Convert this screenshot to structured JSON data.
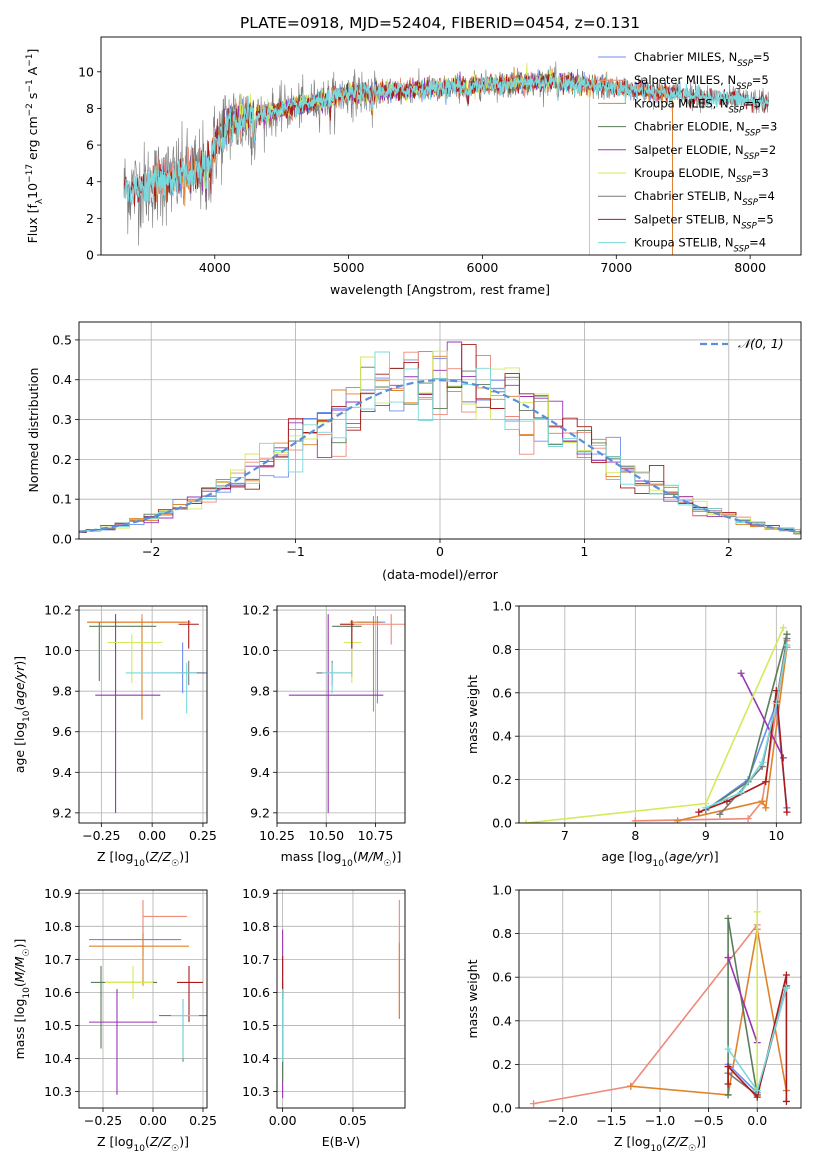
{
  "title": "PLATE=0918, MJD=52404, FIBERID=0454, z=0.131",
  "colors": {
    "Chabrier MILES": "#6c8ef0",
    "Salpeter MILES": "#ee8a7a",
    "Kroupa MILES": "#e0832b",
    "Chabrier ELODIE": "#5a7d5a",
    "Salpeter ELODIE": "#9a35b4",
    "Kroupa ELODIE": "#d4ea5a",
    "Chabrier STELIB": "#7a7a7a",
    "Salpeter STELIB": "#a81c1c",
    "Kroupa STELIB": "#78d8dc",
    "gaussian": "#5b8fd9"
  },
  "legend_spectrum": [
    {
      "series": "Chabrier MILES",
      "prefix": "Chabrier MILES, N",
      "sub": "SSP",
      "suffix": "=5"
    },
    {
      "series": "Salpeter MILES",
      "prefix": "Salpeter MILES, N",
      "sub": "SSP",
      "suffix": "=5"
    },
    {
      "series": "Kroupa MILES",
      "prefix": "Kroupa MILES, N",
      "sub": "SSP",
      "suffix": "=5"
    },
    {
      "series": "Chabrier ELODIE",
      "prefix": "Chabrier ELODIE, N",
      "sub": "SSP",
      "suffix": "=3"
    },
    {
      "series": "Salpeter ELODIE",
      "prefix": "Salpeter ELODIE, N",
      "sub": "SSP",
      "suffix": "=2"
    },
    {
      "series": "Kroupa ELODIE",
      "prefix": "Kroupa ELODIE, N",
      "sub": "SSP",
      "suffix": "=3"
    },
    {
      "series": "Chabrier STELIB",
      "prefix": "Chabrier STELIB, N",
      "sub": "SSP",
      "suffix": "=4"
    },
    {
      "series": "Salpeter STELIB",
      "prefix": "Salpeter STELIB, N",
      "sub": "SSP",
      "suffix": "=5"
    },
    {
      "series": "Kroupa STELIB",
      "prefix": "Kroupa STELIB, N",
      "sub": "SSP",
      "suffix": "=4"
    }
  ],
  "legend_gauss": "𝒩(0, 1)",
  "chart_data": [
    {
      "id": "spectrum",
      "type": "line",
      "xlabel": "wavelength [Angstrom, rest frame]",
      "ylabel": "Flux [f_λ 10^-17 erg cm^-2 s^-1 A^-1]",
      "xlim": [
        3150,
        8380
      ],
      "ylim": [
        0,
        11.9
      ],
      "xticks": [
        4000,
        5000,
        6000,
        7000,
        8000
      ],
      "yticks": [
        0,
        2,
        4,
        6,
        8,
        10
      ],
      "wave_range": [
        3320,
        8140
      ]
    },
    {
      "id": "residuals",
      "type": "histogram",
      "xlabel": "(data-model)/error",
      "ylabel": "Normed distribution",
      "xlim": [
        -2.5,
        2.5
      ],
      "ylim": [
        0,
        0.545
      ],
      "xticks": [
        -2,
        -1,
        0,
        1,
        2
      ],
      "yticks": [
        0.0,
        0.1,
        0.2,
        0.3,
        0.4,
        0.5
      ],
      "grid": true,
      "bin_width": 0.1
    },
    {
      "id": "age_vs_Z",
      "type": "errorbar",
      "xlabel": "Z [log10(Z/Z☉)]",
      "ylabel": "age [log10(age/yr)]",
      "xlim": [
        -0.36,
        0.27
      ],
      "ylim": [
        9.15,
        10.22
      ],
      "xticks": [
        -0.25,
        0.0,
        0.25
      ],
      "yticks": [
        9.2,
        9.4,
        9.6,
        9.8,
        10.0,
        10.2
      ],
      "points": [
        {
          "s": "Chabrier MILES",
          "x": 0.15,
          "y": 9.89,
          "xerr": [
            0.15,
            0.2
          ],
          "yerr": [
            0.1,
            0.15
          ]
        },
        {
          "s": "Salpeter MILES",
          "x": -0.05,
          "y": 10.14,
          "xerr": [
            0.27,
            0.24
          ],
          "yerr": [
            0.08,
            0.04
          ]
        },
        {
          "s": "Kroupa MILES",
          "x": -0.05,
          "y": 10.14,
          "xerr": [
            0.27,
            0.22
          ],
          "yerr": [
            0.48,
            0.02
          ]
        },
        {
          "s": "Chabrier ELODIE",
          "x": -0.26,
          "y": 10.12,
          "xerr": [
            0.05,
            0.28
          ],
          "yerr": [
            0.27,
            0.02
          ]
        },
        {
          "s": "Salpeter ELODIE",
          "x": -0.18,
          "y": 9.78,
          "xerr": [
            0.1,
            0.22
          ],
          "yerr": [
            0.58,
            0.4
          ]
        },
        {
          "s": "Kroupa ELODIE",
          "x": -0.1,
          "y": 10.04,
          "xerr": [
            0.12,
            0.15
          ],
          "yerr": [
            0.2,
            0.04
          ]
        },
        {
          "s": "Chabrier STELIB",
          "x": 0.18,
          "y": 9.89,
          "xerr": [
            0.06,
            0.08
          ],
          "yerr": [
            0.06,
            0.06
          ]
        },
        {
          "s": "Salpeter STELIB",
          "x": 0.18,
          "y": 10.13,
          "xerr": [
            0.05,
            0.05
          ],
          "yerr": [
            0.12,
            0.02
          ]
        },
        {
          "s": "Kroupa STELIB",
          "x": 0.17,
          "y": 9.89,
          "xerr": [
            0.3,
            0.05
          ],
          "yerr": [
            0.2,
            0.05
          ]
        }
      ]
    },
    {
      "id": "age_vs_mass",
      "type": "errorbar",
      "xlabel": "mass [log10(M/M☉)]",
      "ylabel": "",
      "xlim": [
        10.25,
        10.9
      ],
      "ylim": [
        9.15,
        10.22
      ],
      "xticks": [
        10.25,
        10.5,
        10.75
      ],
      "yticks": [
        9.2,
        9.4,
        9.6,
        9.8,
        10.0,
        10.2
      ],
      "points": [
        {
          "s": "Chabrier MILES",
          "x": 10.76,
          "y": 10.14,
          "xerr": [
            0.1,
            0.04
          ],
          "yerr": [
            0.4,
            0.03
          ]
        },
        {
          "s": "Salpeter MILES",
          "x": 10.83,
          "y": 10.13,
          "xerr": [
            0.2,
            0.08
          ],
          "yerr": [
            0.1,
            0.05
          ]
        },
        {
          "s": "Kroupa MILES",
          "x": 10.74,
          "y": 10.14,
          "xerr": [
            0.12,
            0.04
          ],
          "yerr": [
            0.44,
            0.03
          ]
        },
        {
          "s": "Chabrier ELODIE",
          "x": 10.63,
          "y": 10.12,
          "xerr": [
            0.1,
            0.05
          ],
          "yerr": [
            0.25,
            0.03
          ]
        },
        {
          "s": "Salpeter ELODIE",
          "x": 10.51,
          "y": 9.78,
          "xerr": [
            0.2,
            0.28
          ],
          "yerr": [
            0.58,
            0.4
          ]
        },
        {
          "s": "Kroupa ELODIE",
          "x": 10.63,
          "y": 10.04,
          "xerr": [
            0.04,
            0.05
          ],
          "yerr": [
            0.2,
            0.05
          ]
        },
        {
          "s": "Chabrier STELIB",
          "x": 10.53,
          "y": 9.89,
          "xerr": [
            0.08,
            0.1
          ],
          "yerr": [
            0.06,
            0.06
          ]
        },
        {
          "s": "Salpeter STELIB",
          "x": 10.63,
          "y": 10.13,
          "xerr": [
            0.06,
            0.01
          ],
          "yerr": [
            0.12,
            0.02
          ]
        },
        {
          "s": "Kroupa STELIB",
          "x": 10.53,
          "y": 9.89,
          "xerr": [
            0.05,
            0.1
          ],
          "yerr": [
            0.1,
            0.05
          ]
        }
      ]
    },
    {
      "id": "weight_vs_age",
      "type": "line",
      "xlabel": "age [log10(age/yr)]",
      "ylabel": "mass weight",
      "xlim": [
        6.35,
        10.35
      ],
      "ylim": [
        0,
        1.0
      ],
      "xticks": [
        7,
        8,
        9,
        10
      ],
      "yticks": [
        0.0,
        0.2,
        0.4,
        0.6,
        0.8,
        1.0
      ],
      "grid": true,
      "series": [
        {
          "s": "Salpeter MILES",
          "x": [
            8.0,
            9.6,
            9.8,
            10.15
          ],
          "y": [
            0.01,
            0.02,
            0.1,
            0.84
          ]
        },
        {
          "s": "Kroupa MILES",
          "x": [
            8.6,
            9.8,
            9.85,
            10.15
          ],
          "y": [
            0.01,
            0.1,
            0.07,
            0.81
          ]
        },
        {
          "s": "Chabrier MILES",
          "x": [
            9.0,
            9.6,
            10.0,
            10.15
          ],
          "y": [
            0.06,
            0.2,
            0.55,
            0.07
          ]
        },
        {
          "s": "Chabrier ELODIE",
          "x": [
            9.0,
            9.6,
            10.15
          ],
          "y": [
            0.06,
            0.19,
            0.87
          ]
        },
        {
          "s": "Salpeter ELODIE",
          "x": [
            9.5,
            10.1
          ],
          "y": [
            0.69,
            0.3
          ]
        },
        {
          "s": "Kroupa ELODIE",
          "x": [
            6.45,
            9.0,
            10.1
          ],
          "y": [
            0.0,
            0.09,
            0.9
          ]
        },
        {
          "s": "Chabrier STELIB",
          "x": [
            9.2,
            9.8,
            10.0,
            10.15
          ],
          "y": [
            0.04,
            0.26,
            0.56,
            0.85
          ]
        },
        {
          "s": "Salpeter STELIB",
          "x": [
            8.9,
            9.3,
            9.85,
            10.0,
            10.15
          ],
          "y": [
            0.05,
            0.1,
            0.19,
            0.61,
            0.05
          ]
        },
        {
          "s": "Kroupa STELIB",
          "x": [
            9.0,
            9.5,
            9.8,
            10.0,
            10.15
          ],
          "y": [
            0.07,
            0.14,
            0.28,
            0.55,
            0.82
          ]
        }
      ]
    },
    {
      "id": "mass_vs_Z",
      "type": "errorbar",
      "xlabel": "Z [log10(Z/Z☉)]",
      "ylabel": "mass [log10(M/M☉)]",
      "xlim": [
        -0.37,
        0.27
      ],
      "ylim": [
        10.25,
        10.91
      ],
      "xticks": [
        -0.25,
        0.0,
        0.25
      ],
      "yticks": [
        10.3,
        10.4,
        10.5,
        10.6,
        10.7,
        10.8,
        10.9
      ],
      "points": [
        {
          "s": "Chabrier MILES",
          "x": -0.05,
          "y": 10.76,
          "xerr": [
            0.27,
            0.19
          ],
          "yerr": [
            0.05,
            0.04
          ]
        },
        {
          "s": "Salpeter MILES",
          "x": -0.05,
          "y": 10.83,
          "xerr": [
            0.0,
            0.22
          ],
          "yerr": [
            0.12,
            0.05
          ]
        },
        {
          "s": "Kroupa MILES",
          "x": -0.05,
          "y": 10.74,
          "xerr": [
            0.27,
            0.23
          ],
          "yerr": [
            0.12,
            0.04
          ]
        },
        {
          "s": "Chabrier ELODIE",
          "x": -0.26,
          "y": 10.63,
          "xerr": [
            0.05,
            0.28
          ],
          "yerr": [
            0.2,
            0.05
          ]
        },
        {
          "s": "Salpeter ELODIE",
          "x": -0.18,
          "y": 10.51,
          "xerr": [
            0.14,
            0.2
          ],
          "yerr": [
            0.22,
            0.1
          ]
        },
        {
          "s": "Kroupa ELODIE",
          "x": -0.1,
          "y": 10.63,
          "xerr": [
            0.14,
            0.1
          ],
          "yerr": [
            0.05,
            0.05
          ]
        },
        {
          "s": "Chabrier STELIB",
          "x": 0.15,
          "y": 10.53,
          "xerr": [
            0.12,
            0.12
          ],
          "yerr": [
            0.14,
            0.05
          ]
        },
        {
          "s": "Salpeter STELIB",
          "x": 0.18,
          "y": 10.63,
          "xerr": [
            0.06,
            0.07
          ],
          "yerr": [
            0.12,
            0.05
          ]
        },
        {
          "s": "Kroupa STELIB",
          "x": 0.15,
          "y": 10.53,
          "xerr": [
            0.06,
            0.08
          ],
          "yerr": [
            0.13,
            0.05
          ]
        }
      ]
    },
    {
      "id": "mass_vs_ebv",
      "type": "errorbar",
      "xlabel": "E(B-V)",
      "ylabel": "",
      "xlim": [
        -0.004,
        0.087
      ],
      "ylim": [
        10.25,
        10.91
      ],
      "xticks": [
        0.0,
        0.05
      ],
      "yticks": [
        10.3,
        10.4,
        10.5,
        10.6,
        10.7,
        10.8,
        10.9
      ],
      "points": [
        {
          "s": "Salpeter ELODIE",
          "x": 0.0,
          "y": 10.51,
          "xerr": [
            0,
            0
          ],
          "yerr": [
            0.23,
            0.28
          ]
        },
        {
          "s": "Chabrier ELODIE",
          "x": 0.0,
          "y": 10.63,
          "xerr": [
            0,
            0
          ],
          "yerr": [
            0.3,
            0.0
          ]
        },
        {
          "s": "Salpeter STELIB",
          "x": 0.0,
          "y": 10.63,
          "xerr": [
            0,
            0
          ],
          "yerr": [
            0.05,
            0.08
          ]
        },
        {
          "s": "Kroupa STELIB",
          "x": 0.0,
          "y": 10.53,
          "xerr": [
            0,
            0
          ],
          "yerr": [
            0.14,
            0.08
          ]
        },
        {
          "s": "Salpeter MILES",
          "x": 0.083,
          "y": 10.7,
          "xerr": [
            0,
            0
          ],
          "yerr": [
            0.18,
            0.18
          ]
        },
        {
          "s": "Kroupa MILES",
          "x": 0.083,
          "y": 10.65,
          "xerr": [
            0,
            0
          ],
          "yerr": [
            0.13,
            0.1
          ]
        }
      ]
    },
    {
      "id": "weight_vs_Z",
      "type": "line",
      "xlabel": "Z [log10(Z/Z☉)]",
      "ylabel": "mass weight",
      "xlim": [
        -2.45,
        0.45
      ],
      "ylim": [
        0,
        1.0
      ],
      "xticks": [
        -2.0,
        -1.5,
        -1.0,
        -0.5,
        0.0
      ],
      "yticks": [
        0.0,
        0.2,
        0.4,
        0.6,
        0.8,
        1.0
      ],
      "grid": true,
      "series": [
        {
          "s": "Salpeter MILES",
          "x": [
            -2.3,
            -1.3,
            0.0
          ],
          "y": [
            0.02,
            0.1,
            0.84
          ]
        },
        {
          "s": "Kroupa MILES",
          "x": [
            -1.3,
            -0.3,
            0.0,
            0.3
          ],
          "y": [
            0.1,
            0.06,
            0.82,
            0.08
          ]
        },
        {
          "s": "Chabrier MILES",
          "x": [
            -0.3,
            0.0,
            0.3
          ],
          "y": [
            0.2,
            0.07,
            0.55
          ]
        },
        {
          "s": "Chabrier ELODIE",
          "x": [
            -0.3,
            -0.3,
            0.0,
            0.3
          ],
          "y": [
            0.06,
            0.87,
            0.06,
            0.56
          ]
        },
        {
          "s": "Salpeter ELODIE",
          "x": [
            -0.3,
            0.0
          ],
          "y": [
            0.69,
            0.3
          ]
        },
        {
          "s": "Kroupa ELODIE",
          "x": [
            0.0,
            0.0
          ],
          "y": [
            0.09,
            0.9
          ]
        },
        {
          "s": "Chabrier STELIB",
          "x": [
            -0.3,
            0.0,
            0.3
          ],
          "y": [
            0.16,
            0.06,
            0.56
          ]
        },
        {
          "s": "Salpeter STELIB",
          "x": [
            -0.3,
            -0.3,
            0.0,
            0.3,
            0.3
          ],
          "y": [
            0.11,
            0.19,
            0.05,
            0.61,
            0.03
          ]
        },
        {
          "s": "Kroupa STELIB",
          "x": [
            -0.3,
            0.0,
            0.3
          ],
          "y": [
            0.27,
            0.08,
            0.55
          ]
        }
      ]
    }
  ]
}
